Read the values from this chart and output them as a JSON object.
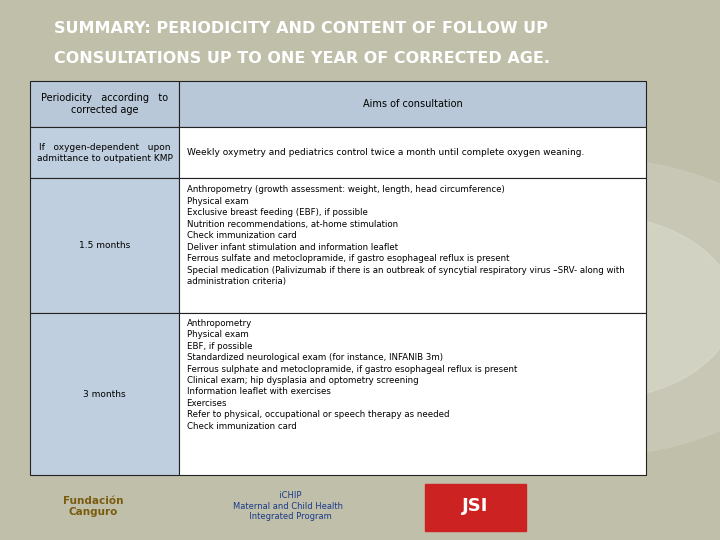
{
  "title_line1": "SUMMARY: PERIODICITY AND CONTENT OF FOLLOW UP",
  "title_line2": "CONSULTATIONS UP TO ONE YEAR OF CORRECTED AGE.",
  "title_bg": "#4a4a2a",
  "title_color": "#ffffff",
  "table_header_col1": "Periodicity   according   to\ncorrected age",
  "table_header_col2": "Aims of consultation",
  "table_header_bg": "#b8c8d8",
  "table_bg_left": "#c0cfe0",
  "table_bg_right": "#ffffff",
  "overall_bg": "#c0bfaa",
  "watermark_color": "#d8d8d8",
  "row1_col1": "If   oxygen-dependent   upon\nadmittance to outpatient KMP",
  "row1_col2": "Weekly oxymetry and pediatrics control twice a month until complete oxygen weaning.",
  "row2_col1": "1.5 months",
  "row2_col2": "Anthropometry (growth assessment: weight, length, head circumference)\nPhysical exam\nExclusive breast feeding (EBF), if possible\nNutrition recommendations, at-home stimulation\nCheck immunization card\nDeliver infant stimulation and information leaflet\nFerrous sulfate and metoclopramide, if gastro esophageal reflux is present\nSpecial medication (Palivizumab if there is an outbreak of syncytial respiratory virus –SRV- along with\nadministration criteria)",
  "row3_col1": "3 months",
  "row3_col2": "Anthropometry\nPhysical exam\nEBF, if possible\nStandardized neurological exam (for instance, INFANIB 3m)\nFerrous sulphate and metoclopramide, if gastro esophageal reflux is present\nClinical exam; hip dysplasia and optometry screening\nInformation leaflet with exercises\nExercises\nRefer to physical, occupational or speech therapy as needed\nCheck immunization card",
  "border_color": "#222222",
  "text_color": "#000000",
  "title_fontsize": 11.5,
  "body_fontsize": 6.5,
  "header_fontsize": 7.0
}
